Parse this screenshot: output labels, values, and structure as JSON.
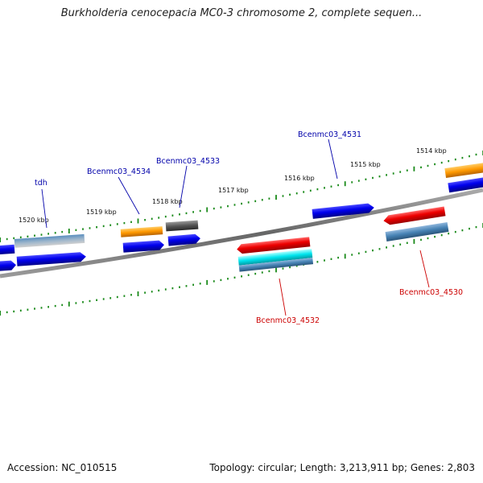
{
  "title": "Burkholderia cenocepacia MC0-3 chromosome 2, complete sequen...",
  "footer": {
    "accession": "Accession: NC_010515",
    "summary": "Topology: circular; Length: 3,213,911 bp; Genes: 2,803"
  },
  "ruler": [
    {
      "label": "1514 kbp"
    },
    {
      "label": "1515 kbp"
    },
    {
      "label": "1516 kbp"
    },
    {
      "label": "1517 kbp"
    },
    {
      "label": "1518 kbp"
    },
    {
      "label": "1519 kbp"
    },
    {
      "label": "1520 kbp"
    }
  ],
  "gene_labels": [
    {
      "name": "tdh",
      "color": "#0000aa"
    },
    {
      "name": "Bcenmc03_4534",
      "color": "#0000aa"
    },
    {
      "name": "Bcenmc03_4533",
      "color": "#0000aa"
    },
    {
      "name": "Bcenmc03_4531",
      "color": "#0000aa"
    },
    {
      "name": "Bcenmc03_4532",
      "color": "#cc0000"
    },
    {
      "name": "Bcenmc03_4530",
      "color": "#cc0000"
    }
  ],
  "colors": {
    "forward_cds": "#0000ee",
    "reverse_cds": "#ee0000",
    "orange_feature": "#ff9900",
    "gray_feature": "#555555",
    "steelblue_feature": "#4682b4",
    "cyan_feature": "#00e5ee",
    "tick": "#1a8a1a",
    "backbone": "#777777"
  }
}
